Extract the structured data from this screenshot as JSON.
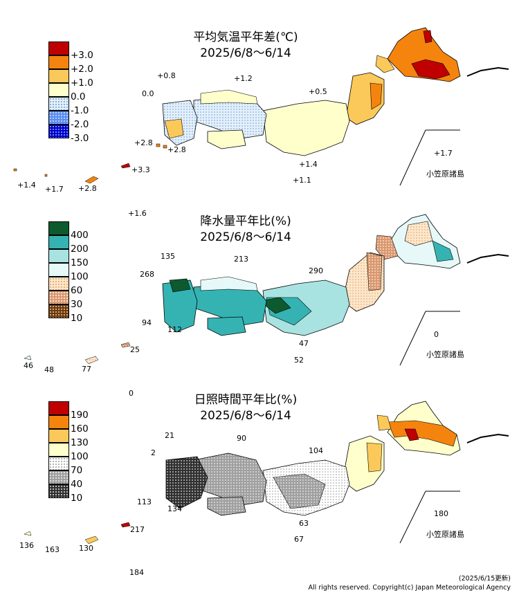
{
  "panels": [
    {
      "title": "平均気温平年差(℃)",
      "period": "2025/6/8～6/14",
      "legend": [
        {
          "label": "+3.0",
          "color": "#c00000",
          "pattern": "solid"
        },
        {
          "label": "+2.0",
          "color": "#f5840f",
          "pattern": "solid"
        },
        {
          "label": "+1.0",
          "color": "#fbc95a",
          "pattern": "solid"
        },
        {
          "label": "0.0",
          "color": "#ffffcc",
          "pattern": "solid"
        },
        {
          "label": "-1.0",
          "color": "#cfe4f7",
          "pattern": "dots-light"
        },
        {
          "label": "-2.0",
          "color": "#5a8cf0",
          "pattern": "dots"
        },
        {
          "label": "-3.0",
          "color": "#0000cc",
          "pattern": "dots"
        }
      ],
      "values": [
        "0.0",
        "+0.8",
        "+1.2",
        "+0.5",
        "+2.8",
        "+2.8",
        "+1.4",
        "+1.1",
        "+1.7",
        "+1.4",
        "+1.7",
        "+2.8",
        "+3.3",
        "+1.6"
      ],
      "ogasawara_label": "小笠原諸島"
    },
    {
      "title": "降水量平年比(%)",
      "period": "2025/6/8～6/14",
      "legend": [
        {
          "label": "400",
          "color": "#0d5a2e",
          "pattern": "solid"
        },
        {
          "label": "200",
          "color": "#35b3b3",
          "pattern": "solid"
        },
        {
          "label": "150",
          "color": "#a8e3e1",
          "pattern": "solid"
        },
        {
          "label": "100",
          "color": "#e6f8f8",
          "pattern": "solid"
        },
        {
          "label": "60",
          "color": "#fbd3a3",
          "pattern": "dots-light"
        },
        {
          "label": "30",
          "color": "#d99870",
          "pattern": "dots"
        },
        {
          "label": "10",
          "color": "#6b3a10",
          "pattern": "dots"
        }
      ],
      "values": [
        "135",
        "213",
        "268",
        "290",
        "94",
        "112",
        "47",
        "52",
        "0",
        "46",
        "48",
        "77",
        "25",
        "0"
      ],
      "ogasawara_label": "小笠原諸島"
    },
    {
      "title": "日照時間平年比(%)",
      "period": "2025/6/8～6/14",
      "legend": [
        {
          "label": "190",
          "color": "#c00000",
          "pattern": "solid"
        },
        {
          "label": "160",
          "color": "#f5840f",
          "pattern": "solid"
        },
        {
          "label": "130",
          "color": "#fbc95a",
          "pattern": "solid"
        },
        {
          "label": "100",
          "color": "#ffffcc",
          "pattern": "solid"
        },
        {
          "label": "70",
          "color": "#ffffff",
          "pattern": "dots-light"
        },
        {
          "label": "40",
          "color": "#a0a0a0",
          "pattern": "dots"
        },
        {
          "label": "10",
          "color": "#303030",
          "pattern": "dots"
        }
      ],
      "values": [
        "21",
        "90",
        "2",
        "104",
        "113",
        "134",
        "63",
        "67",
        "180",
        "136",
        "163",
        "130",
        "217",
        "184"
      ],
      "ogasawara_label": "小笠原諸島"
    }
  ],
  "footer": {
    "updated": "(2025/6/15更新)",
    "copyright": "All rights reserved. Copyright(c) Japan Meteorological Agency"
  }
}
